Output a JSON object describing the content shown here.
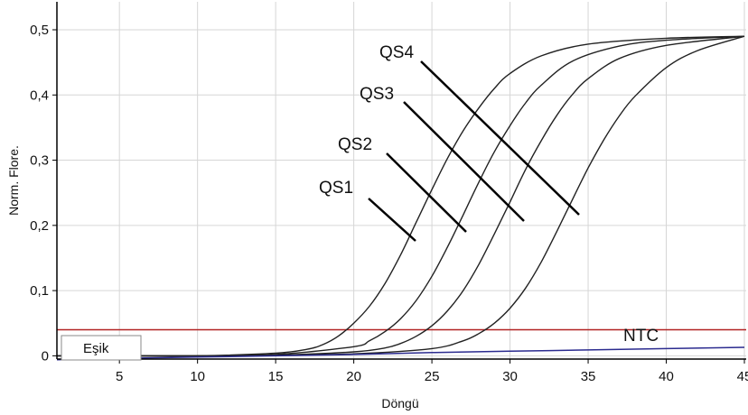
{
  "chart_data": {
    "type": "line",
    "xlabel": "Döngü",
    "ylabel": "Norm. Flore.",
    "xlim": [
      1,
      45
    ],
    "ylim": [
      -0.005,
      0.5
    ],
    "grid": true,
    "x_ticks": [
      5,
      10,
      15,
      20,
      25,
      30,
      35,
      40,
      45
    ],
    "x_tick_labels": [
      "5",
      "10",
      "15",
      "20",
      "25",
      "30",
      "35",
      "40",
      "45"
    ],
    "y_ticks": [
      0,
      0.1,
      0.2,
      0.3,
      0.4,
      0.5
    ],
    "y_tick_labels": [
      "0",
      "0,1",
      "0,2",
      "0,3",
      "0,4",
      "0,5"
    ],
    "threshold": {
      "label": "Eşik",
      "value": 0.04,
      "color": "#b22222"
    },
    "series": [
      {
        "name": "QS1",
        "color": "#222222",
        "x": [
          1,
          5,
          10,
          15,
          17,
          18,
          19,
          20,
          21,
          22,
          23,
          24,
          25,
          26,
          27,
          28,
          29,
          30,
          32,
          35,
          40,
          45
        ],
        "y": [
          0,
          0,
          0,
          0.004,
          0.01,
          0.017,
          0.03,
          0.05,
          0.076,
          0.111,
          0.155,
          0.205,
          0.255,
          0.303,
          0.345,
          0.38,
          0.41,
          0.433,
          0.46,
          0.478,
          0.487,
          0.49
        ]
      },
      {
        "name": "QS2",
        "color": "#222222",
        "x": [
          1,
          5,
          10,
          15,
          20,
          21,
          22,
          23,
          24,
          25,
          26,
          27,
          28,
          29,
          30,
          31,
          32,
          34,
          37,
          40,
          45
        ],
        "y": [
          0,
          0,
          0,
          0.002,
          0.014,
          0.023,
          0.037,
          0.057,
          0.085,
          0.122,
          0.167,
          0.216,
          0.266,
          0.313,
          0.353,
          0.388,
          0.415,
          0.452,
          0.475,
          0.484,
          0.49
        ]
      },
      {
        "name": "QS3",
        "color": "#222222",
        "x": [
          1,
          5,
          10,
          15,
          20,
          22,
          23,
          24,
          25,
          26,
          27,
          28,
          29,
          30,
          31,
          32,
          33,
          34,
          35,
          37,
          40,
          45
        ],
        "y": [
          0,
          0,
          0,
          0.001,
          0.006,
          0.012,
          0.019,
          0.03,
          0.046,
          0.069,
          0.1,
          0.14,
          0.187,
          0.236,
          0.286,
          0.33,
          0.369,
          0.401,
          0.425,
          0.456,
          0.476,
          0.49
        ]
      },
      {
        "name": "QS4",
        "color": "#222222",
        "x": [
          1,
          5,
          10,
          15,
          20,
          25,
          27,
          28,
          29,
          30,
          31,
          32,
          33,
          34,
          35,
          36,
          37,
          38,
          40,
          42,
          45
        ],
        "y": [
          0,
          0,
          0,
          0.001,
          0.003,
          0.011,
          0.023,
          0.034,
          0.05,
          0.073,
          0.104,
          0.144,
          0.191,
          0.24,
          0.288,
          0.331,
          0.368,
          0.398,
          0.442,
          0.468,
          0.49
        ]
      },
      {
        "name": "NTC",
        "color": "#2b2b8f",
        "x": [
          1,
          5,
          10,
          15,
          20,
          25,
          30,
          35,
          40,
          45
        ],
        "y": [
          -0.006,
          -0.004,
          -0.002,
          0,
          0.002,
          0.005,
          0.007,
          0.009,
          0.011,
          0.013
        ]
      }
    ],
    "annotations": [
      "QS4",
      "QS3",
      "QS2",
      "QS1",
      "NTC"
    ]
  }
}
